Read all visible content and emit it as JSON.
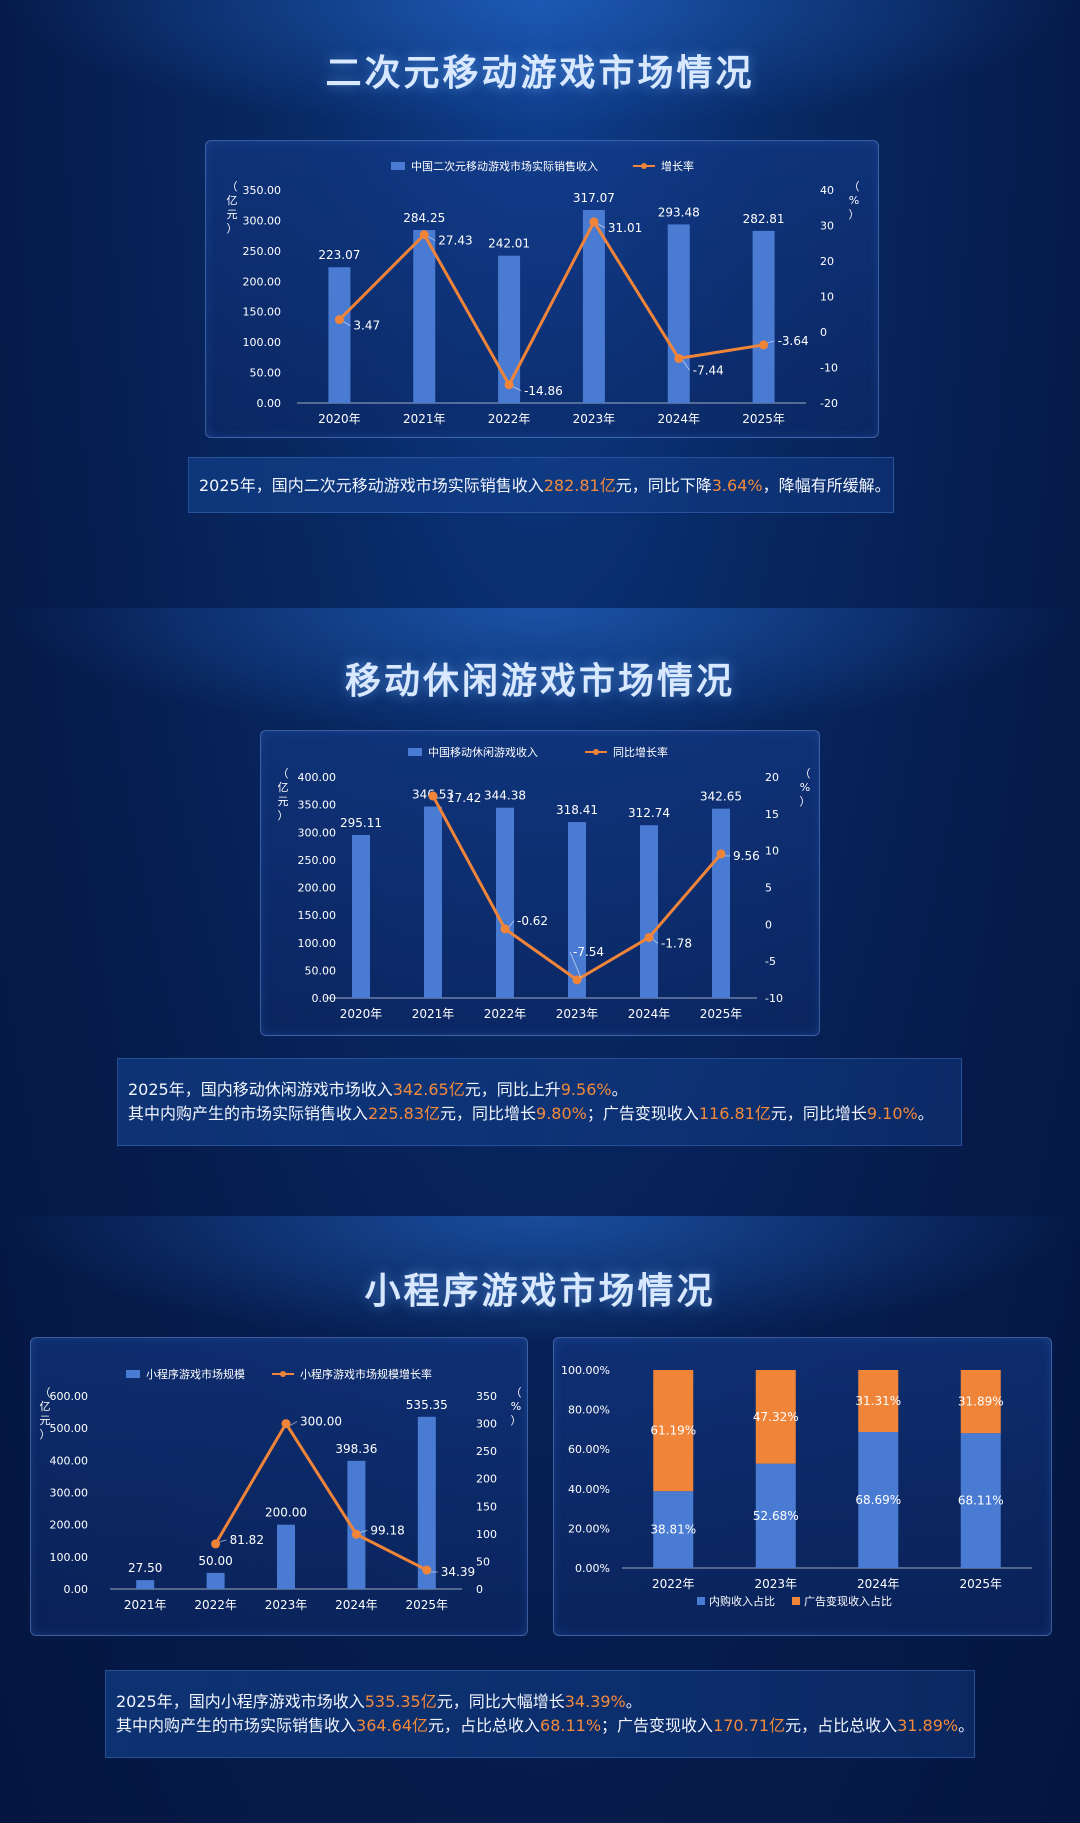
{
  "sections": [
    {
      "title": "二次元移动游戏市场情况",
      "summary": [
        [
          [
            "2025年，国内二次元移动游戏市场实际销售收入",
            false
          ],
          [
            "282.81亿",
            true
          ],
          [
            "元，同比下降",
            false
          ],
          [
            "3.64%",
            true
          ],
          [
            "，降幅有所缓解。",
            false
          ]
        ]
      ]
    },
    {
      "title": "移动休闲游戏市场情况",
      "summary": [
        [
          [
            "2025年，国内移动休闲游戏市场收入",
            false
          ],
          [
            "342.65亿",
            true
          ],
          [
            "元，同比上升",
            false
          ],
          [
            "9.56%",
            true
          ],
          [
            "。",
            false
          ]
        ],
        [
          [
            "其中内购产生的市场实际销售收入",
            false
          ],
          [
            "225.83亿",
            true
          ],
          [
            "元，同比增长",
            false
          ],
          [
            "9.80%",
            true
          ],
          [
            "；广告变现收入",
            false
          ],
          [
            "116.81亿",
            true
          ],
          [
            "元，同比增长",
            false
          ],
          [
            "9.10%",
            true
          ],
          [
            "。",
            false
          ]
        ]
      ]
    },
    {
      "title": "小程序游戏市场情况",
      "summary": [
        [
          [
            "2025年，国内小程序游戏市场收入",
            false
          ],
          [
            "535.35亿",
            true
          ],
          [
            "元，同比大幅增长",
            false
          ],
          [
            "34.39%",
            true
          ],
          [
            "。",
            false
          ]
        ],
        [
          [
            "其中内购产生的市场实际销售收入",
            false
          ],
          [
            "364.64亿",
            true
          ],
          [
            "元，占比总收入",
            false
          ],
          [
            "68.11%",
            true
          ],
          [
            "；广告变现收入",
            false
          ],
          [
            "170.71亿",
            true
          ],
          [
            "元，占比总收入",
            false
          ],
          [
            "31.89%",
            true
          ],
          [
            "。",
            false
          ]
        ]
      ]
    }
  ],
  "colors": {
    "bar": "#4a7bd2",
    "line": "#f0853a",
    "text": "#ffffff",
    "highlight": "#f28a3c"
  },
  "chart_data": [
    {
      "type": "bar",
      "categories": [
        "2020年",
        "2021年",
        "2022年",
        "2023年",
        "2024年",
        "2025年"
      ],
      "series": [
        {
          "name": "中国二次元移动游戏市场实际销售收入",
          "type": "bar",
          "values": [
            223.07,
            284.25,
            242.01,
            317.07,
            293.48,
            282.81
          ],
          "labels": [
            "223.07",
            "284.25",
            "242.01",
            "317.07",
            "293.48",
            "282.81"
          ]
        },
        {
          "name": "增长率",
          "type": "line",
          "axis": "right",
          "values": [
            3.47,
            27.43,
            -14.86,
            31.01,
            -7.44,
            -3.64
          ],
          "labels": [
            "3.47",
            "27.43",
            "-14.86",
            "31.01",
            "-7.44",
            "-3.64"
          ]
        }
      ],
      "yleft": {
        "label": "（亿元）",
        "min": 0,
        "max": 350,
        "ticks": [
          "0.00",
          "50.00",
          "100.00",
          "150.00",
          "200.00",
          "250.00",
          "300.00",
          "350.00"
        ]
      },
      "yright": {
        "label": "（%）",
        "min": -20,
        "max": 40,
        "ticks": [
          "-20",
          "-10",
          "0",
          "10",
          "20",
          "30",
          "40"
        ]
      },
      "legend": "top"
    },
    {
      "type": "bar",
      "categories": [
        "2020年",
        "2021年",
        "2022年",
        "2023年",
        "2024年",
        "2025年"
      ],
      "series": [
        {
          "name": "中国移动休闲游戏收入",
          "type": "bar",
          "values": [
            295.11,
            346.53,
            344.38,
            318.41,
            312.74,
            342.65
          ],
          "labels": [
            "295.11",
            "346.53",
            "344.38",
            "318.41",
            "312.74",
            "342.65"
          ]
        },
        {
          "name": "同比增长率",
          "type": "line",
          "axis": "right",
          "values": [
            null,
            17.42,
            -0.62,
            -7.54,
            -1.78,
            9.56
          ],
          "labels": [
            "",
            "17.42",
            "-0.62",
            "-7.54",
            "-1.78",
            "9.56"
          ]
        }
      ],
      "yleft": {
        "label": "（亿元）",
        "min": 0,
        "max": 400,
        "ticks": [
          "0.00",
          "50.00",
          "100.00",
          "150.00",
          "200.00",
          "250.00",
          "300.00",
          "350.00",
          "400.00"
        ]
      },
      "yright": {
        "label": "（%）",
        "min": -10,
        "max": 20,
        "ticks": [
          "-10",
          "-5",
          "0",
          "5",
          "10",
          "15",
          "20"
        ]
      },
      "legend": "top"
    },
    {
      "type": "bar",
      "categories": [
        "2021年",
        "2022年",
        "2023年",
        "2024年",
        "2025年"
      ],
      "series": [
        {
          "name": "小程序游戏市场规模",
          "type": "bar",
          "values": [
            27.5,
            50.0,
            200.0,
            398.36,
            535.35
          ],
          "labels": [
            "27.50",
            "50.00",
            "200.00",
            "398.36",
            "535.35"
          ]
        },
        {
          "name": "小程序游戏市场规模增长率",
          "type": "line",
          "axis": "right",
          "values": [
            null,
            81.82,
            300.0,
            99.18,
            34.39
          ],
          "labels": [
            "",
            "81.82",
            "300.00",
            "99.18",
            "34.39"
          ]
        }
      ],
      "yleft": {
        "label": "（亿元）",
        "min": 0,
        "max": 600,
        "ticks": [
          "0.00",
          "100.00",
          "200.00",
          "300.00",
          "400.00",
          "500.00",
          "600.00"
        ]
      },
      "yright": {
        "label": "（%）",
        "min": 0,
        "max": 350,
        "ticks": [
          "0",
          "50",
          "100",
          "150",
          "200",
          "250",
          "300",
          "350"
        ]
      },
      "legend": "top"
    },
    {
      "type": "bar",
      "stacked": true,
      "categories": [
        "2022年",
        "2023年",
        "2024年",
        "2025年"
      ],
      "series": [
        {
          "name": "内购收入占比",
          "values": [
            38.81,
            52.68,
            68.69,
            68.11
          ],
          "labels": [
            "38.81%",
            "52.68%",
            "68.69%",
            "68.11%"
          ]
        },
        {
          "name": "广告变现收入占比",
          "values": [
            61.19,
            47.32,
            31.31,
            31.89
          ],
          "labels": [
            "61.19%",
            "47.32%",
            "31.31%",
            "31.89%"
          ]
        }
      ],
      "yleft": {
        "min": 0,
        "max": 100,
        "ticks": [
          "0.00%",
          "20.00%",
          "40.00%",
          "60.00%",
          "80.00%",
          "100.00%"
        ]
      },
      "legend": "bottom"
    }
  ]
}
